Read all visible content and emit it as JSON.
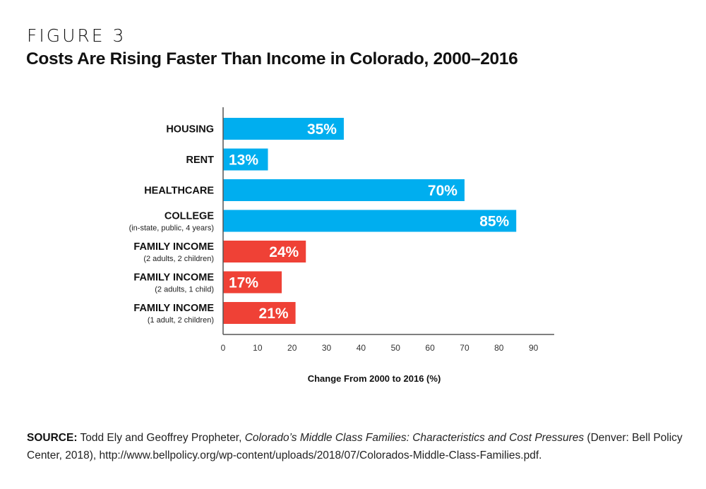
{
  "header": {
    "figure_label": "FIGURE 3",
    "title": "Costs Are Rising Faster Than Income in Colorado, 2000–2016"
  },
  "chart_data": {
    "type": "bar",
    "orientation": "horizontal",
    "title": "Costs Are Rising Faster Than Income in Colorado, 2000–2016",
    "xlabel": "Change From 2000 to 2016 (%)",
    "ylabel": "",
    "xlim": [
      0,
      96
    ],
    "xticks": [
      0,
      10,
      20,
      30,
      40,
      50,
      60,
      70,
      80,
      90
    ],
    "grid": false,
    "legend": "none",
    "categories": [
      {
        "label": "HOUSING",
        "sublabel": "",
        "value": 35,
        "value_label": "35%",
        "group": "cost"
      },
      {
        "label": "RENT",
        "sublabel": "",
        "value": 13,
        "value_label": "13%",
        "group": "cost"
      },
      {
        "label": "HEALTHCARE",
        "sublabel": "",
        "value": 70,
        "value_label": "70%",
        "group": "cost"
      },
      {
        "label": "COLLEGE",
        "sublabel": "(in-state, public, 4 years)",
        "value": 85,
        "value_label": "85%",
        "group": "cost"
      },
      {
        "label": "FAMILY INCOME",
        "sublabel": "(2 adults, 2 children)",
        "value": 24,
        "value_label": "24%",
        "group": "income"
      },
      {
        "label": "FAMILY INCOME",
        "sublabel": "(2 adults, 1 child)",
        "value": 17,
        "value_label": "17%",
        "group": "income"
      },
      {
        "label": "FAMILY INCOME",
        "sublabel": "(1 adult, 2 children)",
        "value": 21,
        "value_label": "21%",
        "group": "income"
      }
    ],
    "colors": {
      "cost": "#00aeef",
      "income": "#ef4136",
      "axis": "#555555"
    }
  },
  "source": {
    "label": "SOURCE:",
    "authors": " Todd Ely and Geoffrey Propheter, ",
    "work_title": "Colorado’s Middle Class Families: Characteristics and Cost Pressures",
    "rest": " (Denver: Bell Policy Center, 2018), http://www.bellpolicy.org/wp-content/uploads/2018/07/Colorados-Middle-Class-Families.pdf."
  }
}
